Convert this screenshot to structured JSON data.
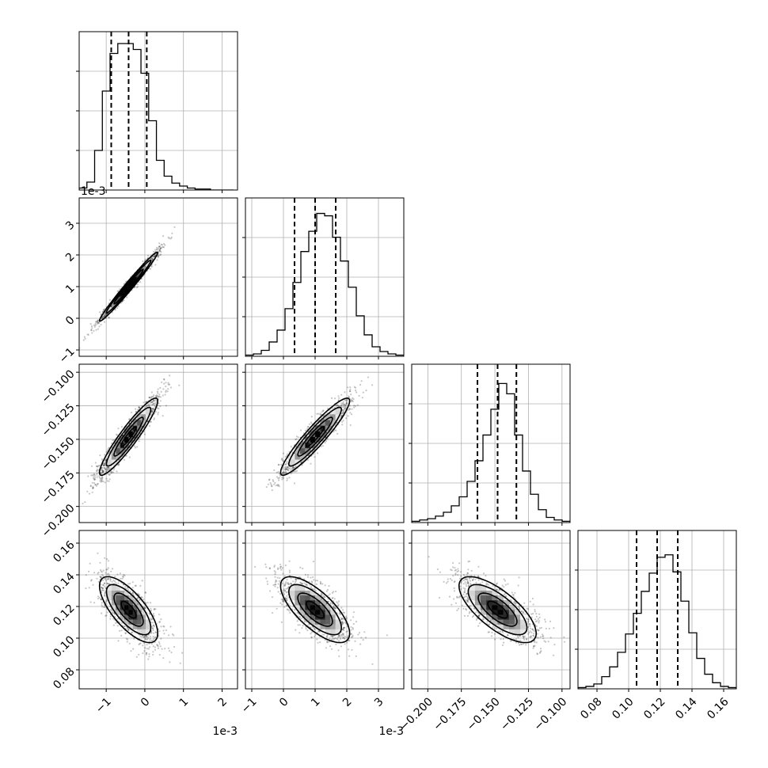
{
  "chart_data": {
    "type": "corner",
    "title": "",
    "parameters": [
      {
        "index": 0,
        "range": [
          -0.0017,
          0.0024
        ],
        "ticks": [
          -0.001,
          0,
          0.001,
          0.002
        ],
        "tick_labels": [
          "−1",
          "0",
          "1",
          "2"
        ],
        "offset_text": "1e-3",
        "quantiles": [
          -0.00087,
          -0.00042,
          5e-05
        ],
        "hist_edges_start": -0.0017,
        "hist_bin_width": 0.0002,
        "hist_counts": [
          2,
          8,
          40,
          100,
          138,
          148,
          148,
          142,
          118,
          70,
          30,
          14,
          7,
          4,
          2,
          1,
          1,
          0,
          0,
          0
        ],
        "hist_ylim": [
          0,
          160
        ]
      },
      {
        "index": 1,
        "range": [
          -0.0012,
          0.0038
        ],
        "ticks": [
          -0.001,
          0,
          0.001,
          0.002,
          0.003
        ],
        "tick_labels": [
          "−1",
          "0",
          "1",
          "2",
          "3"
        ],
        "offset_text": "1e-3",
        "quantiles": [
          0.00035,
          0.001,
          0.00165
        ],
        "hist_edges_start": -0.0012,
        "hist_bin_width": 0.00025,
        "hist_counts": [
          1,
          2,
          5,
          12,
          22,
          40,
          62,
          88,
          105,
          120,
          118,
          100,
          80,
          58,
          34,
          18,
          8,
          4,
          2,
          1
        ],
        "hist_ylim": [
          0,
          133
        ]
      },
      {
        "index": 2,
        "range": [
          -0.212,
          -0.094
        ],
        "ticks": [
          -0.2,
          -0.175,
          -0.15,
          -0.125,
          -0.1
        ],
        "tick_labels": [
          "−0.200",
          "−0.175",
          "−0.150",
          "−0.125",
          "−0.100"
        ],
        "offset_text": "",
        "quantiles": [
          -0.163,
          -0.148,
          -0.134
        ],
        "hist_edges_start": -0.212,
        "hist_bin_width": 0.0059,
        "hist_counts": [
          1,
          2,
          3,
          5,
          8,
          13,
          20,
          32,
          48,
          68,
          88,
          108,
          100,
          68,
          40,
          22,
          10,
          4,
          2,
          1
        ],
        "hist_ylim": [
          0,
          123
        ]
      },
      {
        "index": 3,
        "range": [
          0.068,
          0.168
        ],
        "ticks": [
          0.08,
          0.1,
          0.12,
          0.14,
          0.16
        ],
        "tick_labels": [
          "0.08",
          "0.10",
          "0.12",
          "0.14",
          "0.16"
        ],
        "offset_text": "",
        "quantiles": [
          0.105,
          0.118,
          0.131
        ],
        "hist_edges_start": 0.068,
        "hist_bin_width": 0.005,
        "hist_counts": [
          1,
          2,
          4,
          10,
          18,
          30,
          45,
          62,
          80,
          95,
          108,
          110,
          96,
          72,
          46,
          25,
          12,
          5,
          2,
          1
        ],
        "hist_ylim": [
          0,
          130
        ]
      }
    ],
    "pairs": [
      {
        "x": 0,
        "y": 1,
        "center": [
          -0.00042,
          0.001
        ],
        "sigma": [
          0.00038,
          0.00055
        ],
        "rho": 0.985,
        "contour_fractions": [
          0.12,
          0.39,
          0.68,
          0.86
        ]
      },
      {
        "x": 0,
        "y": 2,
        "center": [
          -0.00042,
          -0.148
        ],
        "sigma": [
          0.00038,
          0.0145
        ],
        "rho": 0.93,
        "contour_fractions": [
          0.12,
          0.39,
          0.68,
          0.86
        ]
      },
      {
        "x": 1,
        "y": 2,
        "center": [
          0.001,
          -0.148
        ],
        "sigma": [
          0.00055,
          0.0145
        ],
        "rho": 0.93,
        "contour_fractions": [
          0.12,
          0.39,
          0.68,
          0.86
        ]
      },
      {
        "x": 0,
        "y": 3,
        "center": [
          -0.00042,
          0.118
        ],
        "sigma": [
          0.00038,
          0.0105
        ],
        "rho": -0.72,
        "contour_fractions": [
          0.12,
          0.39,
          0.68,
          0.86
        ]
      },
      {
        "x": 1,
        "y": 3,
        "center": [
          0.001,
          0.118
        ],
        "sigma": [
          0.00055,
          0.0105
        ],
        "rho": -0.72,
        "contour_fractions": [
          0.12,
          0.39,
          0.68,
          0.86
        ]
      },
      {
        "x": 2,
        "y": 3,
        "center": [
          -0.148,
          0.118
        ],
        "sigma": [
          0.0145,
          0.0105
        ],
        "rho": -0.72,
        "contour_fractions": [
          0.12,
          0.39,
          0.68,
          0.86
        ]
      }
    ],
    "grid": true
  }
}
